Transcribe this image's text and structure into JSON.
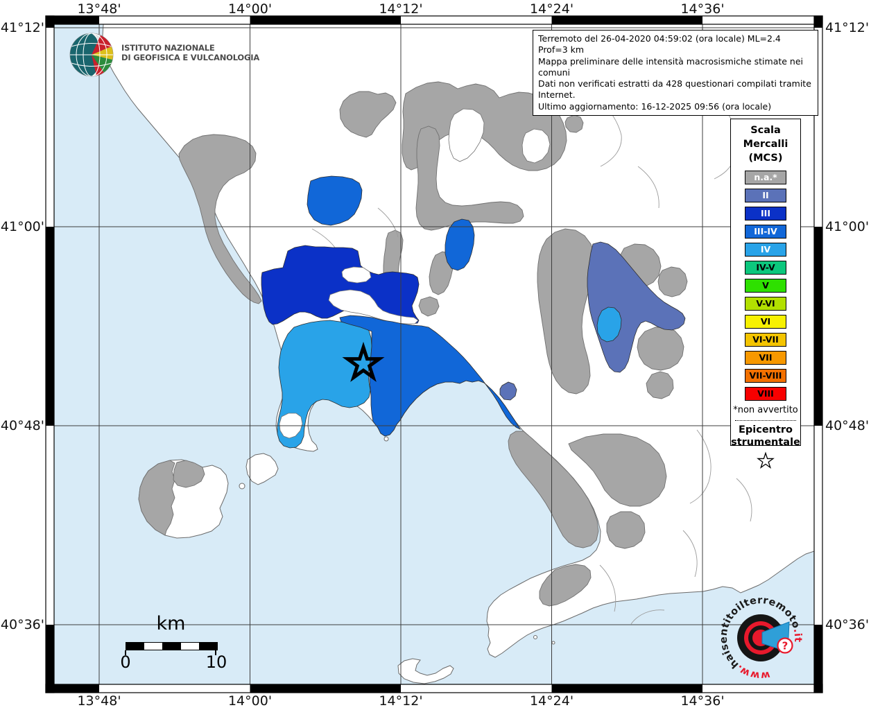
{
  "info_box": {
    "line1": "Terremoto del 26-04-2020 04:59:02 (ora locale) ML=2.4 Prof=3 km",
    "line2": "Mappa preliminare delle intensità macrosismiche stimate nei comuni",
    "line3": "Dati non verificati estratti da 428 questionari compilati tramite Internet.",
    "line4": "Ultimo aggiornamento: 16-12-2025 09:56 (ora locale)"
  },
  "ingv_logo": {
    "line1": "ISTITUTO NAZIONALE",
    "line2": "DI GEOFISICA E VULCANOLOGIA"
  },
  "legend": {
    "title_lines": [
      "Scala",
      "Mercalli",
      "(MCS)"
    ],
    "items": [
      {
        "key": "na",
        "label": "n.a.*",
        "color": "#a6a6a6",
        "text_color": "#ffffff"
      },
      {
        "key": "ii",
        "label": "II",
        "color": "#5b72b8",
        "text_color": "#ffffff"
      },
      {
        "key": "iii",
        "label": "III",
        "color": "#0b31c7",
        "text_color": "#ffffff"
      },
      {
        "key": "iii-iv",
        "label": "III-IV",
        "color": "#1167d8",
        "text_color": "#ffffff"
      },
      {
        "key": "iv",
        "label": "IV",
        "color": "#29a3e8",
        "text_color": "#ffffff"
      },
      {
        "key": "iv-v",
        "label": "IV-V",
        "color": "#0cc77d",
        "text_color": "#000000"
      },
      {
        "key": "v",
        "label": "V",
        "color": "#2ee000",
        "text_color": "#000000"
      },
      {
        "key": "v-vi",
        "label": "V-VI",
        "color": "#b2e000",
        "text_color": "#000000"
      },
      {
        "key": "vi",
        "label": "VI",
        "color": "#f7f100",
        "text_color": "#000000"
      },
      {
        "key": "vi-vii",
        "label": "VI-VII",
        "color": "#f4c400",
        "text_color": "#000000"
      },
      {
        "key": "vii",
        "label": "VII",
        "color": "#f79800",
        "text_color": "#000000"
      },
      {
        "key": "vii-viii",
        "label": "VII-VIII",
        "color": "#f27000",
        "text_color": "#000000"
      },
      {
        "key": "viii",
        "label": "VIII",
        "color": "#f70000",
        "text_color": "#000000"
      }
    ],
    "footnote": "*non avvertito",
    "epicenter_lines": [
      "Epicentro",
      "strumentale"
    ]
  },
  "axes": {
    "x_labels": [
      "13°48'",
      "14°00'",
      "14°12'",
      "14°24'",
      "14°36'"
    ],
    "y_labels": [
      "41°12'",
      "41°00'",
      "40°48'",
      "40°36'"
    ]
  },
  "scalebar": {
    "unit": "km",
    "start": "0",
    "end": "10"
  },
  "watermark": {
    "www": "www.",
    "domain": "haisentitoilterremoto",
    "tld": ".it",
    "badge": "?"
  },
  "map_colors": {
    "sea": "#d8ebf7",
    "land": "#ffffff",
    "na": "#a6a6a6"
  }
}
